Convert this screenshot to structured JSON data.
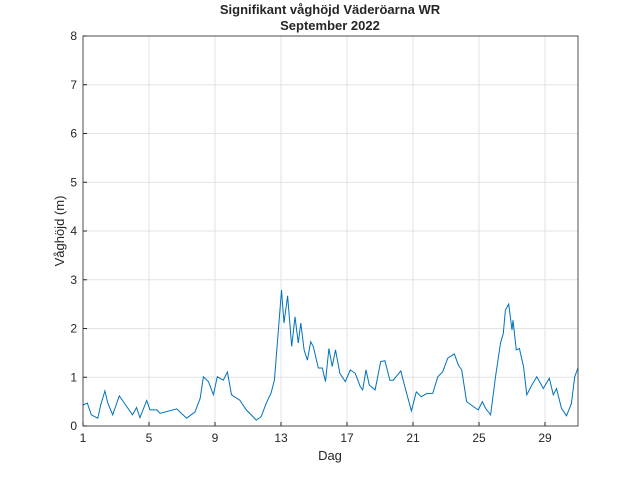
{
  "chart_data": {
    "type": "line",
    "title": "Signifikant våghöjd Väderöarna WR",
    "subtitle": "September 2022",
    "xlabel": "Dag",
    "ylabel": "Våghöjd (m)",
    "xlim": [
      1,
      31
    ],
    "ylim": [
      0,
      8
    ],
    "xticks": [
      1,
      5,
      9,
      13,
      17,
      21,
      25,
      29
    ],
    "yticks": [
      0,
      1,
      2,
      3,
      4,
      5,
      6,
      7,
      8
    ],
    "grid": true,
    "line_color": "#0072BD",
    "series": [
      {
        "name": "Våghöjd",
        "x": [
          1.0,
          1.26,
          1.5,
          1.9,
          2.07,
          2.33,
          2.5,
          2.8,
          3.2,
          3.65,
          4.0,
          4.25,
          4.45,
          4.86,
          5.06,
          5.47,
          5.67,
          6.68,
          7.28,
          7.79,
          8.1,
          8.3,
          8.6,
          8.9,
          9.14,
          9.5,
          9.75,
          10.0,
          10.5,
          10.9,
          11.5,
          11.8,
          12.1,
          12.4,
          12.6,
          12.84,
          13.03,
          13.18,
          13.4,
          13.65,
          13.85,
          14.05,
          14.2,
          14.4,
          14.6,
          14.8,
          14.96,
          15.26,
          15.5,
          15.7,
          15.9,
          16.1,
          16.3,
          16.57,
          16.9,
          17.2,
          17.5,
          17.8,
          17.95,
          18.15,
          18.35,
          18.7,
          19.04,
          19.3,
          19.6,
          19.8,
          20.26,
          20.5,
          20.9,
          21.2,
          21.5,
          21.8,
          22.2,
          22.5,
          22.8,
          23.1,
          23.5,
          23.75,
          23.95,
          24.25,
          24.65,
          24.96,
          25.2,
          25.4,
          25.7,
          26.0,
          26.3,
          26.47,
          26.6,
          26.8,
          27.0,
          27.06,
          27.26,
          27.45,
          27.7,
          27.9,
          28.2,
          28.5,
          28.9,
          29.26,
          29.5,
          29.7,
          30.0,
          30.3,
          30.6,
          30.8,
          31.0
        ],
        "y": [
          0.43,
          0.47,
          0.23,
          0.16,
          0.43,
          0.72,
          0.47,
          0.23,
          0.62,
          0.4,
          0.23,
          0.38,
          0.17,
          0.52,
          0.33,
          0.33,
          0.26,
          0.35,
          0.16,
          0.29,
          0.57,
          1.01,
          0.91,
          0.64,
          1.01,
          0.94,
          1.11,
          0.64,
          0.53,
          0.33,
          0.12,
          0.19,
          0.46,
          0.68,
          0.94,
          1.97,
          2.79,
          2.11,
          2.67,
          1.63,
          2.24,
          1.7,
          2.11,
          1.56,
          1.35,
          1.73,
          1.63,
          1.19,
          1.19,
          0.91,
          1.59,
          1.22,
          1.56,
          1.08,
          0.91,
          1.15,
          1.08,
          0.81,
          0.74,
          1.15,
          0.84,
          0.74,
          1.32,
          1.34,
          0.94,
          0.94,
          1.13,
          0.81,
          0.31,
          0.7,
          0.6,
          0.66,
          0.67,
          1.01,
          1.11,
          1.39,
          1.48,
          1.25,
          1.15,
          0.5,
          0.4,
          0.33,
          0.5,
          0.36,
          0.23,
          1.01,
          1.7,
          1.9,
          2.38,
          2.5,
          1.97,
          2.17,
          1.56,
          1.59,
          1.22,
          0.64,
          0.84,
          1.01,
          0.77,
          0.98,
          0.64,
          0.77,
          0.36,
          0.21,
          0.46,
          1.01,
          1.19
        ]
      }
    ]
  }
}
